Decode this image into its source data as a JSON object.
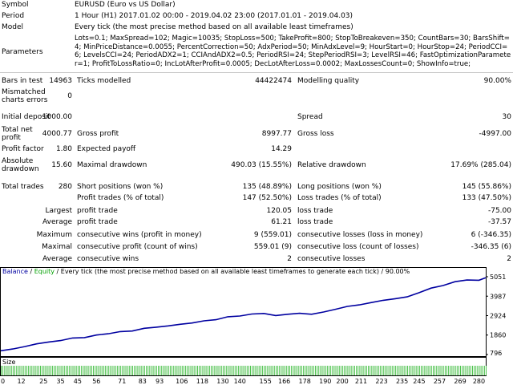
{
  "report": {
    "symbol_label": "Symbol",
    "symbol_value": "EURUSD (Euro vs US Dollar)",
    "period_label": "Period",
    "period_value": "1 Hour (H1) 2017.01.02 00:00 - 2019.04.02 23:00 (2017.01.01 - 2019.04.03)",
    "model_label": "Model",
    "model_value": "Every tick (the most precise method based on all available least timeframes)",
    "parameters_label": "Parameters",
    "parameters_value": "Lots=0.1; MaxSpread=102; Magic=10035; StopLoss=500; TakeProfit=800; StopToBreakeven=350; CountBars=30; BarsShift=4; MinPriceDistance=0.0055; PercentCorrection=50; AdxPeriod=50; MinAdxLevel=9; HourStart=0; HourStop=24; PeriodCCI=6; LevelsCCI=24; PeriodADX2=1; CCIAndADX2=0.5; PeriodRSI=24; StepPeriodRSI=3; LevelRSI=46; FastOptimizationParameter=1; ProfitToLossRatio=0; IncLotAfterProfit=0.0005; DecLotAfterLoss=0.0002; MaxLossesCount=0; ShowInfo=true;",
    "bars_label": "Bars in test",
    "bars_value": "14963",
    "ticks_label": "Ticks modelled",
    "ticks_value": "44422474",
    "quality_label": "Modelling quality",
    "quality_value": "90.00%",
    "mismatch_label_1": "Mismatched",
    "mismatch_label_2": "charts errors",
    "mismatch_value": "0",
    "deposit_label": "Initial deposit",
    "deposit_value": "1000.00",
    "spread_label": "Spread",
    "spread_value": "30",
    "netprofit_label_1": "Total net",
    "netprofit_label_2": "profit",
    "netprofit_value": "4000.77",
    "grossprofit_label": "Gross profit",
    "grossprofit_value": "8997.77",
    "grossloss_label": "Gross loss",
    "grossloss_value": "-4997.00",
    "pf_label": "Profit factor",
    "pf_value": "1.80",
    "payoff_label": "Expected payoff",
    "payoff_value": "14.29",
    "absdd_label_1": "Absolute",
    "absdd_label_2": "drawdown",
    "absdd_value": "15.60",
    "maxdd_label": "Maximal drawdown",
    "maxdd_value": "490.03 (15.55%)",
    "reldd_label": "Relative drawdown",
    "reldd_value": "17.69% (285.04)",
    "trades_label": "Total trades",
    "trades_value": "280",
    "short_label": "Short positions (won %)",
    "short_value": "135 (48.89%)",
    "long_label": "Long positions (won %)",
    "long_value": "145 (55.86%)",
    "profit_trades_label": "Profit trades (% of total)",
    "profit_trades_value": "147 (52.50%)",
    "loss_trades_label": "Loss trades (% of total)",
    "loss_trades_value": "133 (47.50%)",
    "largest_label": "Largest",
    "largest_profit_label": "profit trade",
    "largest_profit_value": "120.05",
    "largest_loss_label": "loss trade",
    "largest_loss_value": "-75.00",
    "average_label": "Average",
    "average_profit_label": "profit trade",
    "average_profit_value": "61.21",
    "average_loss_label": "loss trade",
    "average_loss_value": "-37.57",
    "maximum_label": "Maximum",
    "max_wins_label": "consecutive wins (profit in money)",
    "max_wins_value": "9 (559.01)",
    "max_losses_label": "consecutive losses (loss in money)",
    "max_losses_value": "6 (-346.35)",
    "maximal_label": "Maximal",
    "maximal_profit_label": "consecutive profit (count of wins)",
    "maximal_profit_value": "559.01 (9)",
    "maximal_loss_label": "consecutive loss (count of losses)",
    "maximal_loss_value": "-346.35 (6)",
    "avg_cons_label": "Average",
    "avg_wins_label": "consecutive wins",
    "avg_wins_value": "2",
    "avg_losses_label": "consecutive losses",
    "avg_losses_value": "2"
  },
  "chart": {
    "legend_balance": "Balance",
    "legend_sep": " / ",
    "legend_equity": "Equity",
    "legend_rest": " / Every tick (the most precise method based on all available least timeframes to generate each tick) / 90.00%",
    "size_label": "Size",
    "balance_color": "#0000a0",
    "equity_color": "#00a000",
    "size_bar_color": "#4ec24e"
  },
  "chart_data": {
    "type": "line",
    "series": [
      {
        "name": "Balance",
        "x": [
          0,
          7,
          14,
          21,
          28,
          35,
          42,
          49,
          56,
          63,
          70,
          77,
          84,
          91,
          98,
          105,
          112,
          119,
          126,
          133,
          140,
          147,
          154,
          161,
          168,
          175,
          182,
          189,
          196,
          203,
          210,
          217,
          224,
          231,
          238,
          245,
          252,
          259,
          266,
          273,
          280,
          284
        ],
        "values": [
          1000,
          1100,
          1230,
          1380,
          1480,
          1560,
          1700,
          1720,
          1860,
          1930,
          2050,
          2080,
          2230,
          2290,
          2360,
          2450,
          2520,
          2640,
          2700,
          2860,
          2900,
          3010,
          3040,
          2930,
          3000,
          3050,
          3000,
          3120,
          3270,
          3430,
          3510,
          3640,
          3760,
          3850,
          3950,
          4180,
          4430,
          4570,
          4780,
          4870,
          4860,
          5000
        ]
      }
    ],
    "y_ticks": [
      "5051",
      "3987",
      "2924",
      "1860",
      "796"
    ],
    "x_ticks": [
      "0",
      "12",
      "25",
      "35",
      "45",
      "56",
      "71",
      "83",
      "93",
      "106",
      "118",
      "130",
      "140",
      "155",
      "166",
      "178",
      "190",
      "200",
      "211",
      "223",
      "235",
      "245",
      "257",
      "269",
      "280"
    ],
    "ylim": [
      796,
      5051
    ],
    "xlim": [
      0,
      284
    ],
    "grid": false,
    "legend": "top-left"
  }
}
